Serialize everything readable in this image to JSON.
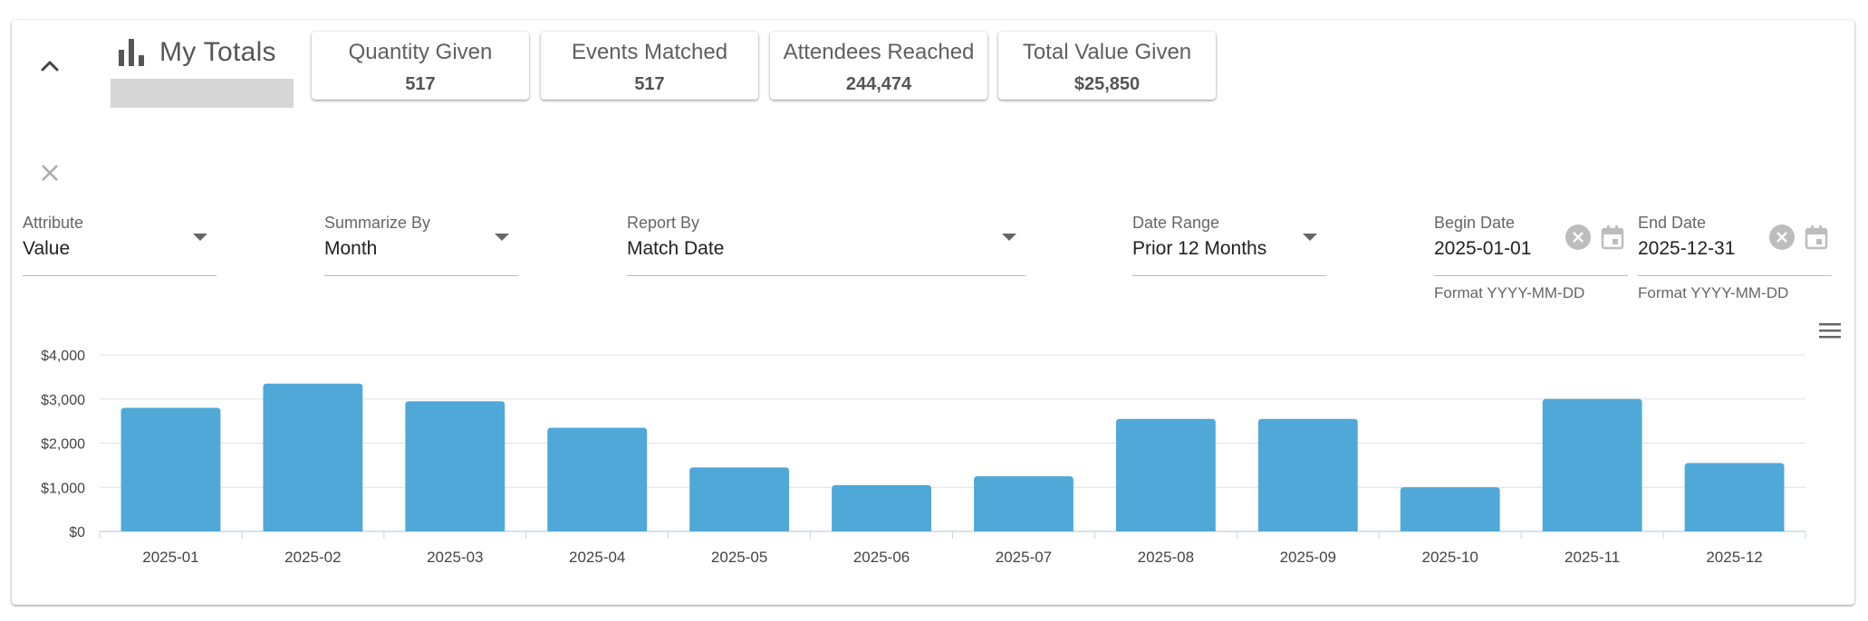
{
  "header": {
    "title": "My Totals",
    "title_icon": "bar-chart-icon",
    "collapse_icon": "chevron-up-icon"
  },
  "stats": [
    {
      "label": "Quantity Given",
      "value": "517"
    },
    {
      "label": "Events Matched",
      "value": "517"
    },
    {
      "label": "Attendees Reached",
      "value": "244,474"
    },
    {
      "label": "Total Value Given",
      "value": "$25,850"
    }
  ],
  "filters": {
    "clear_icon": "close-icon",
    "attribute": {
      "label": "Attribute",
      "value": "Value"
    },
    "summarize_by": {
      "label": "Summarize By",
      "value": "Month"
    },
    "report_by": {
      "label": "Report By",
      "value": "Match Date"
    },
    "date_range": {
      "label": "Date Range",
      "value": "Prior 12 Months"
    },
    "begin_date": {
      "label": "Begin Date",
      "value": "2025-01-01",
      "helper": "Format YYYY-MM-DD"
    },
    "end_date": {
      "label": "End Date",
      "value": "2025-12-31",
      "helper": "Format YYYY-MM-DD"
    }
  },
  "chart_menu_icon": "hamburger-menu-icon",
  "chart_data": {
    "type": "bar",
    "categories": [
      "2025-01",
      "2025-02",
      "2025-03",
      "2025-04",
      "2025-05",
      "2025-06",
      "2025-07",
      "2025-08",
      "2025-09",
      "2025-10",
      "2025-11",
      "2025-12"
    ],
    "values": [
      2800,
      3350,
      2950,
      2350,
      1450,
      1050,
      1250,
      2550,
      2550,
      1000,
      3000,
      1550
    ],
    "ylim": [
      0,
      4000
    ],
    "yticks": [
      0,
      1000,
      2000,
      3000,
      4000
    ],
    "ytick_labels": [
      "$0",
      "$1,000",
      "$2,000",
      "$3,000",
      "$4,000"
    ],
    "title": "",
    "xlabel": "",
    "ylabel": "",
    "bar_color": "#4fa8d8",
    "grid": true,
    "legend": "none"
  }
}
